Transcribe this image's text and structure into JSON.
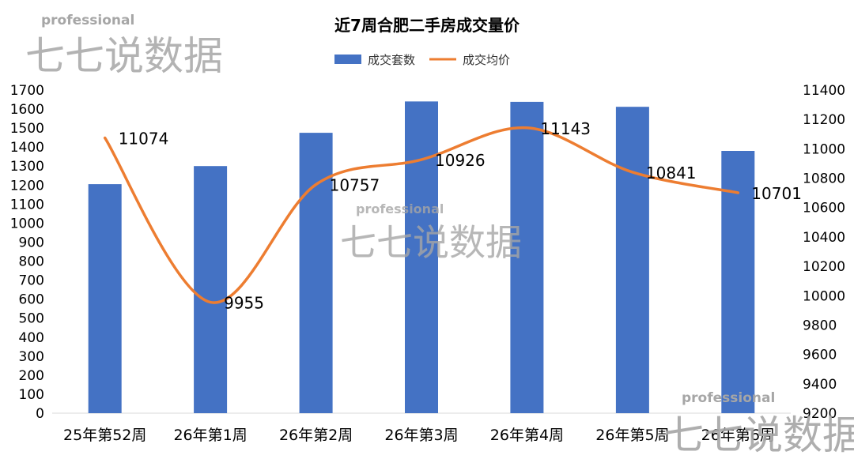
{
  "chart_data": {
    "type": "bar",
    "title": "近7周合肥二手房成交量价",
    "categories": [
      "25年第52周",
      "26年第1周",
      "26年第2周",
      "26年第3周",
      "26年第4周",
      "26年第5周",
      "26年第6周"
    ],
    "series": [
      {
        "name": "成交套数",
        "type": "bar",
        "axis": "left",
        "color": "#4472c4",
        "values": [
          1205,
          1300,
          1475,
          1640,
          1638,
          1612,
          1380
        ]
      },
      {
        "name": "成交均价",
        "type": "line",
        "axis": "right",
        "color": "#ed7d31",
        "smooth": true,
        "values": [
          11074,
          9955,
          10757,
          10926,
          11143,
          10841,
          10701
        ],
        "data_labels": [
          "11074",
          "9955",
          "10757",
          "10926",
          "11143",
          "10841",
          "10701"
        ]
      }
    ],
    "y_left": {
      "min": 0,
      "max": 1700,
      "step": 100,
      "ticks": [
        "0",
        "100",
        "200",
        "300",
        "400",
        "500",
        "600",
        "700",
        "800",
        "900",
        "1000",
        "1100",
        "1200",
        "1300",
        "1400",
        "1500",
        "1600",
        "1700"
      ]
    },
    "y_right": {
      "min": 9200,
      "max": 11400,
      "step": 200,
      "ticks": [
        "9200",
        "9400",
        "9600",
        "9800",
        "10000",
        "10200",
        "10400",
        "10600",
        "10800",
        "11000",
        "11200",
        "11400"
      ]
    },
    "legend": {
      "position": "top"
    },
    "grid": false
  },
  "watermark": {
    "sub": "professional",
    "main": "七七说数据"
  }
}
